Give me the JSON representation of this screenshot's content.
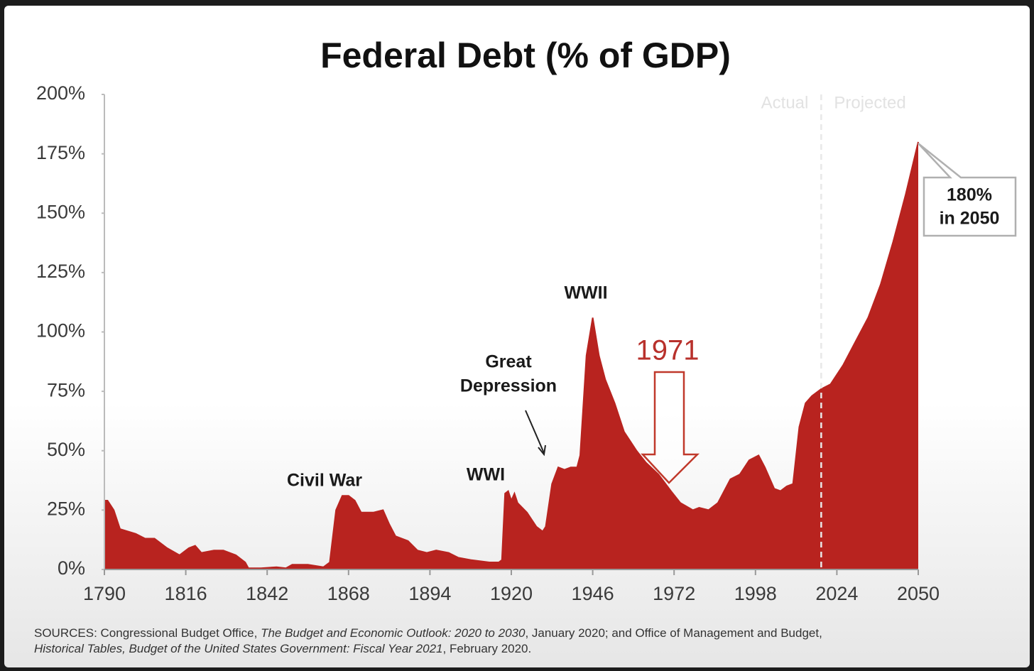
{
  "chart_data": {
    "type": "area",
    "title": "Federal Debt (% of GDP)",
    "color": "#b8231f",
    "x": [
      1790,
      1791,
      1793,
      1795,
      1800,
      1803,
      1806,
      1810,
      1814,
      1817,
      1819,
      1821,
      1825,
      1828,
      1832,
      1835,
      1836,
      1840,
      1845,
      1848,
      1850,
      1855,
      1860,
      1862,
      1864,
      1866,
      1868,
      1870,
      1872,
      1876,
      1879,
      1881,
      1883,
      1887,
      1890,
      1893,
      1896,
      1900,
      1903,
      1907,
      1913,
      1916,
      1917,
      1918,
      1919,
      1920,
      1921,
      1922,
      1925,
      1928,
      1930,
      1931,
      1933,
      1935,
      1937,
      1939,
      1941,
      1942,
      1944,
      1946,
      1948,
      1950,
      1953,
      1956,
      1960,
      1963,
      1967,
      1971,
      1974,
      1978,
      1980,
      1983,
      1986,
      1990,
      1993,
      1996,
      1999,
      2001,
      2004,
      2006,
      2008,
      2010,
      2012,
      2014,
      2016,
      2019,
      2022,
      2026,
      2030,
      2034,
      2038,
      2042,
      2046,
      2050
    ],
    "values": [
      29,
      29,
      25,
      17,
      15,
      13,
      13,
      9,
      6,
      9,
      10,
      7,
      8,
      8,
      6,
      3,
      0.5,
      0.5,
      1,
      0.5,
      2,
      2,
      1,
      3,
      25,
      31,
      31,
      29,
      24,
      24,
      25,
      19,
      14,
      12,
      8,
      7,
      8,
      7,
      5,
      4,
      3,
      3,
      4,
      32,
      33,
      29,
      32,
      28,
      24,
      18,
      16,
      18,
      36,
      43,
      42,
      43,
      43,
      48,
      90,
      106,
      90,
      80,
      70,
      58,
      50,
      45,
      40,
      33,
      28,
      25,
      26,
      25,
      28,
      38,
      40,
      46,
      48,
      43,
      34,
      33,
      35,
      36,
      60,
      70,
      73,
      76,
      78,
      86,
      96,
      106,
      120,
      138,
      158,
      180
    ],
    "xlim": [
      1790,
      2050
    ],
    "xticks": [
      1790,
      1816,
      1842,
      1868,
      1894,
      1920,
      1946,
      1972,
      1998,
      2024,
      2050
    ],
    "ylim": [
      0,
      200
    ],
    "yticks": [
      {
        "value": 0,
        "label": "0%"
      },
      {
        "value": 25,
        "label": "25%"
      },
      {
        "value": 50,
        "label": "50%"
      },
      {
        "value": 75,
        "label": "75%"
      },
      {
        "value": 100,
        "label": "100%"
      },
      {
        "value": 125,
        "label": "125%"
      },
      {
        "value": 150,
        "label": "150%"
      },
      {
        "value": 175,
        "label": "175%"
      },
      {
        "value": 200,
        "label": "200%"
      }
    ],
    "divider_x": 2019,
    "divider_labels": [
      "Actual",
      "Projected"
    ],
    "annotations": {
      "civil_war": "Civil War",
      "wwi": "WWI",
      "great_depression": [
        "Great",
        "Depression"
      ],
      "wwii": "WWII",
      "year_1971": "1971",
      "callout": [
        "180%",
        "in 2050"
      ]
    },
    "sources": [
      {
        "text": "SOURCES: Congressional Budget Office, ",
        "italic": false
      },
      {
        "text": "The Budget and Economic Outlook: 2020 to 2030",
        "italic": true
      },
      {
        "text": ", January 2020; and Office of Management and Budget,",
        "italic": false
      },
      {
        "text": "Historical Tables, Budget of the United States Government: Fiscal Year 2021",
        "italic": true
      },
      {
        "text": ", February 2020.",
        "italic": false
      }
    ]
  }
}
